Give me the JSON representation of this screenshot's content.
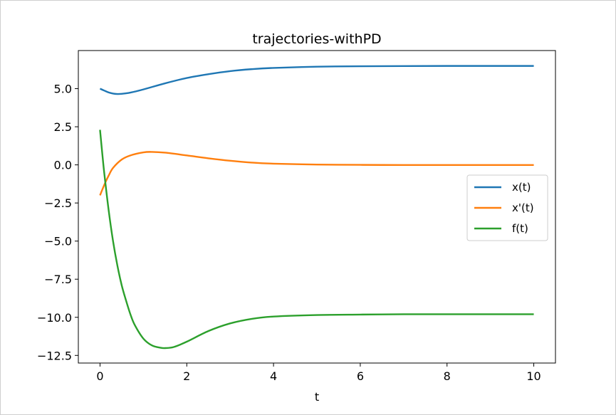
{
  "chart_data": {
    "type": "line",
    "title": "trajectories-withPD",
    "xlabel": "t",
    "ylabel": "",
    "xlim": [
      -0.5,
      10.5
    ],
    "ylim": [
      -13.0,
      7.5
    ],
    "xticks": [
      0,
      2,
      4,
      6,
      8,
      10
    ],
    "xtick_labels": [
      "0",
      "2",
      "4",
      "6",
      "8",
      "10"
    ],
    "yticks": [
      5.0,
      2.5,
      0.0,
      -2.5,
      -5.0,
      -7.5,
      -10.0,
      -12.5
    ],
    "ytick_labels": [
      "5.0",
      "2.5",
      "0.0",
      "−2.5",
      "−5.0",
      "−7.5",
      "−10.0",
      "−12.5"
    ],
    "grid": false,
    "legend_position": "center-right",
    "series": [
      {
        "name": "x(t)",
        "color": "#1f77b4",
        "x": [
          0,
          0.1,
          0.2,
          0.3,
          0.4,
          0.5,
          0.7,
          1.0,
          1.5,
          2.0,
          2.5,
          3.0,
          3.5,
          4.0,
          5.0,
          6.0,
          7.0,
          8.0,
          9.0,
          10.0
        ],
        "y": [
          5.0,
          4.87,
          4.75,
          4.68,
          4.65,
          4.66,
          4.74,
          4.95,
          5.35,
          5.7,
          5.95,
          6.15,
          6.28,
          6.36,
          6.44,
          6.47,
          6.48,
          6.49,
          6.49,
          6.49
        ]
      },
      {
        "name": "x'(t)",
        "color": "#ff7f0e",
        "x": [
          0,
          0.1,
          0.2,
          0.3,
          0.5,
          0.7,
          1.0,
          1.2,
          1.5,
          2.0,
          2.5,
          3.0,
          3.5,
          4.0,
          5.0,
          6.0,
          7.0,
          8.0,
          9.0,
          10.0
        ],
        "y": [
          -2.0,
          -1.3,
          -0.7,
          -0.2,
          0.35,
          0.62,
          0.82,
          0.85,
          0.8,
          0.62,
          0.43,
          0.27,
          0.15,
          0.08,
          0.02,
          0.0,
          -0.01,
          -0.01,
          -0.01,
          -0.01
        ]
      },
      {
        "name": "f(t)",
        "color": "#2ca02c",
        "x": [
          0,
          0.05,
          0.1,
          0.2,
          0.3,
          0.4,
          0.5,
          0.6,
          0.7,
          0.8,
          1.0,
          1.2,
          1.4,
          1.5,
          1.7,
          2.0,
          2.5,
          3.0,
          3.5,
          4.0,
          5.0,
          6.0,
          7.0,
          8.0,
          9.0,
          10.0
        ],
        "y": [
          2.3,
          0.8,
          -0.6,
          -3.0,
          -5.0,
          -6.6,
          -7.9,
          -8.9,
          -9.8,
          -10.5,
          -11.4,
          -11.85,
          -12.0,
          -12.02,
          -11.95,
          -11.6,
          -10.9,
          -10.4,
          -10.1,
          -9.95,
          -9.85,
          -9.82,
          -9.8,
          -9.8,
          -9.8,
          -9.8
        ]
      }
    ]
  }
}
